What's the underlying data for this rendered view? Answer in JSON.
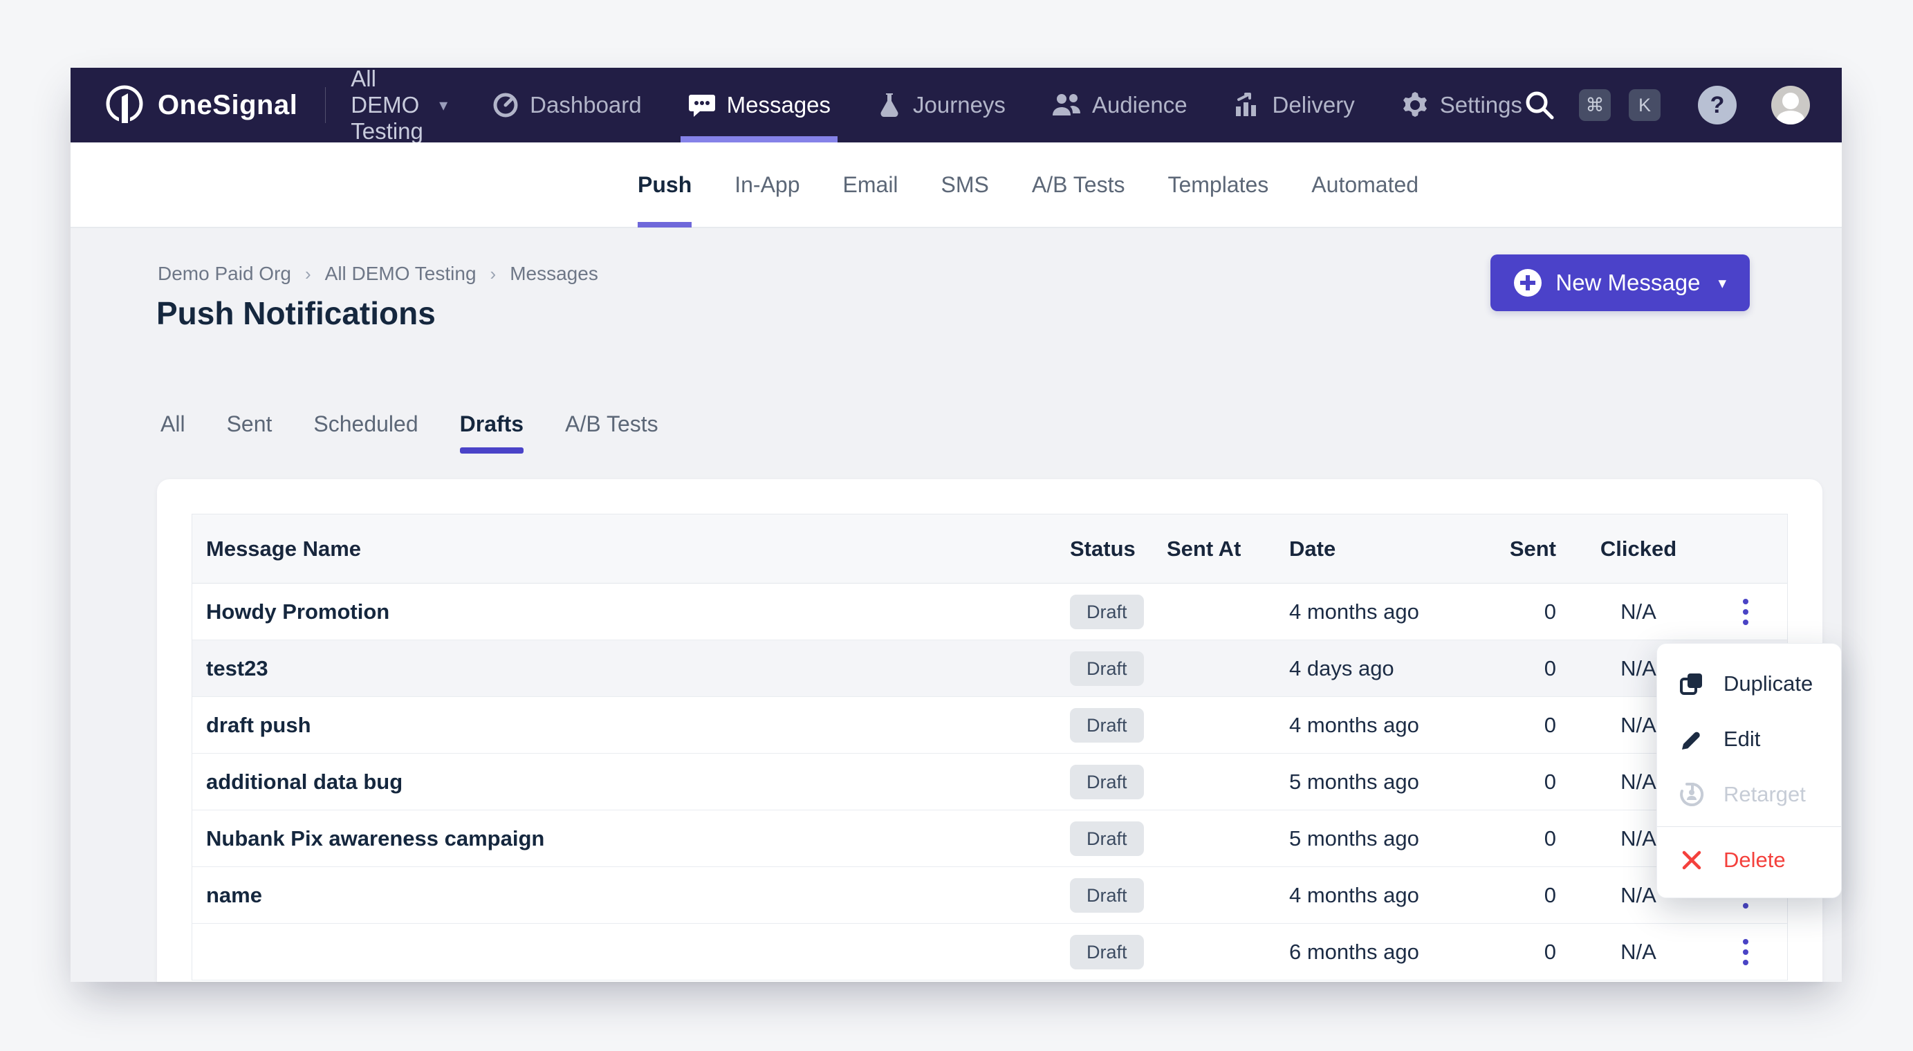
{
  "brand": {
    "name": "OneSignal",
    "logo_icon": "onesignal-logo-icon"
  },
  "topnav": {
    "org_selector": {
      "label": "All DEMO Testing",
      "caret": "▾"
    },
    "items": [
      {
        "label": "Dashboard",
        "icon": "dashboard-icon",
        "active": false
      },
      {
        "label": "Messages",
        "icon": "messages-icon",
        "active": true
      },
      {
        "label": "Journeys",
        "icon": "journeys-icon",
        "active": false
      },
      {
        "label": "Audience",
        "icon": "audience-icon",
        "active": false
      },
      {
        "label": "Delivery",
        "icon": "delivery-icon",
        "active": false
      },
      {
        "label": "Settings",
        "icon": "settings-icon",
        "active": false
      }
    ],
    "search": {
      "icon": "search-icon",
      "shortcut": [
        "⌘",
        "K"
      ]
    },
    "help_label": "?"
  },
  "subnav": {
    "items": [
      {
        "label": "Push",
        "active": true
      },
      {
        "label": "In-App",
        "active": false
      },
      {
        "label": "Email",
        "active": false
      },
      {
        "label": "SMS",
        "active": false
      },
      {
        "label": "A/B Tests",
        "active": false
      },
      {
        "label": "Templates",
        "active": false
      },
      {
        "label": "Automated",
        "active": false
      }
    ]
  },
  "breadcrumb": {
    "separator": "›",
    "items": [
      "Demo Paid Org",
      "All DEMO Testing",
      "Messages"
    ]
  },
  "page": {
    "title": "Push Notifications"
  },
  "new_message": {
    "label": "New Message",
    "icon": "plus-circle-icon",
    "caret": "▾"
  },
  "tabs": [
    {
      "label": "All",
      "active": false
    },
    {
      "label": "Sent",
      "active": false
    },
    {
      "label": "Scheduled",
      "active": false
    },
    {
      "label": "Drafts",
      "active": true
    },
    {
      "label": "A/B Tests",
      "active": false
    }
  ],
  "table": {
    "columns": [
      "Message Name",
      "Status",
      "Sent At",
      "Date",
      "Sent",
      "Clicked"
    ],
    "rows": [
      {
        "name": "Howdy Promotion",
        "status": "Draft",
        "sent_at": "",
        "date": "4 months ago",
        "sent": "0",
        "clicked": "N/A",
        "highlighted": false
      },
      {
        "name": "test23",
        "status": "Draft",
        "sent_at": "",
        "date": "4 days ago",
        "sent": "0",
        "clicked": "N/A",
        "highlighted": true
      },
      {
        "name": "draft push",
        "status": "Draft",
        "sent_at": "",
        "date": "4 months ago",
        "sent": "0",
        "clicked": "N/A",
        "highlighted": false
      },
      {
        "name": "additional data bug",
        "status": "Draft",
        "sent_at": "",
        "date": "5 months ago",
        "sent": "0",
        "clicked": "N/A",
        "highlighted": false
      },
      {
        "name": "Nubank Pix awareness campaign",
        "status": "Draft",
        "sent_at": "",
        "date": "5 months ago",
        "sent": "0",
        "clicked": "N/A",
        "highlighted": false
      },
      {
        "name": "name",
        "status": "Draft",
        "sent_at": "",
        "date": "4 months ago",
        "sent": "0",
        "clicked": "N/A",
        "highlighted": false
      },
      {
        "name": "",
        "status": "Draft",
        "sent_at": "",
        "date": "6 months ago",
        "sent": "0",
        "clicked": "N/A",
        "highlighted": false
      }
    ]
  },
  "context_menu": {
    "items": [
      {
        "label": "Duplicate",
        "icon": "duplicate-icon",
        "disabled": false,
        "danger": false
      },
      {
        "label": "Edit",
        "icon": "edit-icon",
        "disabled": false,
        "danger": false
      },
      {
        "label": "Retarget",
        "icon": "retarget-icon",
        "disabled": true,
        "danger": false
      },
      {
        "label": "Delete",
        "icon": "delete-icon",
        "disabled": false,
        "danger": true
      }
    ]
  },
  "colors": {
    "nav_bg": "#221e45",
    "nav_active_underline": "#8582e8",
    "primary_button": "#4b42c9",
    "subnav_underline": "#6f68da",
    "tab_underline": "#4a43c8",
    "kebab": "#4a44c5",
    "danger": "#f4403c",
    "disabled": "#c6ccd6",
    "badge_bg": "#e3e6ea",
    "page_bg": "#f1f2f5"
  }
}
